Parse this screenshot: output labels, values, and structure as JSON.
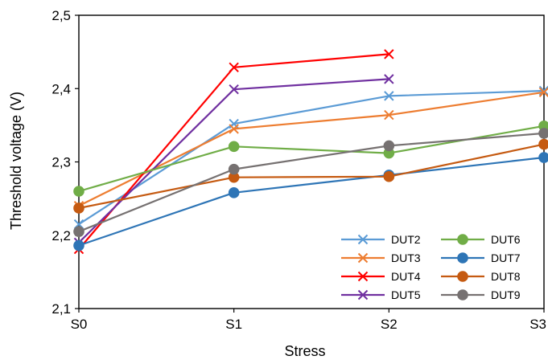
{
  "chart_data": {
    "type": "line",
    "title": "",
    "xlabel": "Stress",
    "ylabel": "Threshold voltage (V)",
    "categories": [
      "S0",
      "S1",
      "S2",
      "S3"
    ],
    "ylim": [
      2.1,
      2.5
    ],
    "yticks": [
      "2,1",
      "2,2",
      "2,3",
      "2,4",
      "2,5"
    ],
    "yticks_values": [
      2.1,
      2.2,
      2.3,
      2.4,
      2.5
    ],
    "grid": false,
    "legend_placement": "bottom-right",
    "series": [
      {
        "name": "DUT2",
        "color": "#5B9BD5",
        "marker": "x",
        "values": [
          2.215,
          2.352,
          2.39,
          2.397
        ]
      },
      {
        "name": "DUT3",
        "color": "#ED7D31",
        "marker": "x",
        "values": [
          2.24,
          2.345,
          2.364,
          2.395
        ]
      },
      {
        "name": "DUT4",
        "color": "#FF0000",
        "marker": "x",
        "values": [
          2.181,
          2.429,
          2.447,
          null
        ]
      },
      {
        "name": "DUT5",
        "color": "#7030A0",
        "marker": "x",
        "values": [
          2.19,
          2.399,
          2.413,
          null
        ]
      },
      {
        "name": "DUT6",
        "color": "#70AD47",
        "marker": "circle",
        "values": [
          2.26,
          2.321,
          2.312,
          2.349
        ]
      },
      {
        "name": "DUT7",
        "color": "#2E75B6",
        "marker": "circle",
        "values": [
          2.186,
          2.258,
          2.282,
          2.306
        ]
      },
      {
        "name": "DUT8",
        "color": "#C55A11",
        "marker": "circle",
        "values": [
          2.237,
          2.279,
          2.28,
          2.324
        ]
      },
      {
        "name": "DUT9",
        "color": "#767171",
        "marker": "circle",
        "values": [
          2.205,
          2.29,
          2.322,
          2.339
        ]
      }
    ]
  }
}
